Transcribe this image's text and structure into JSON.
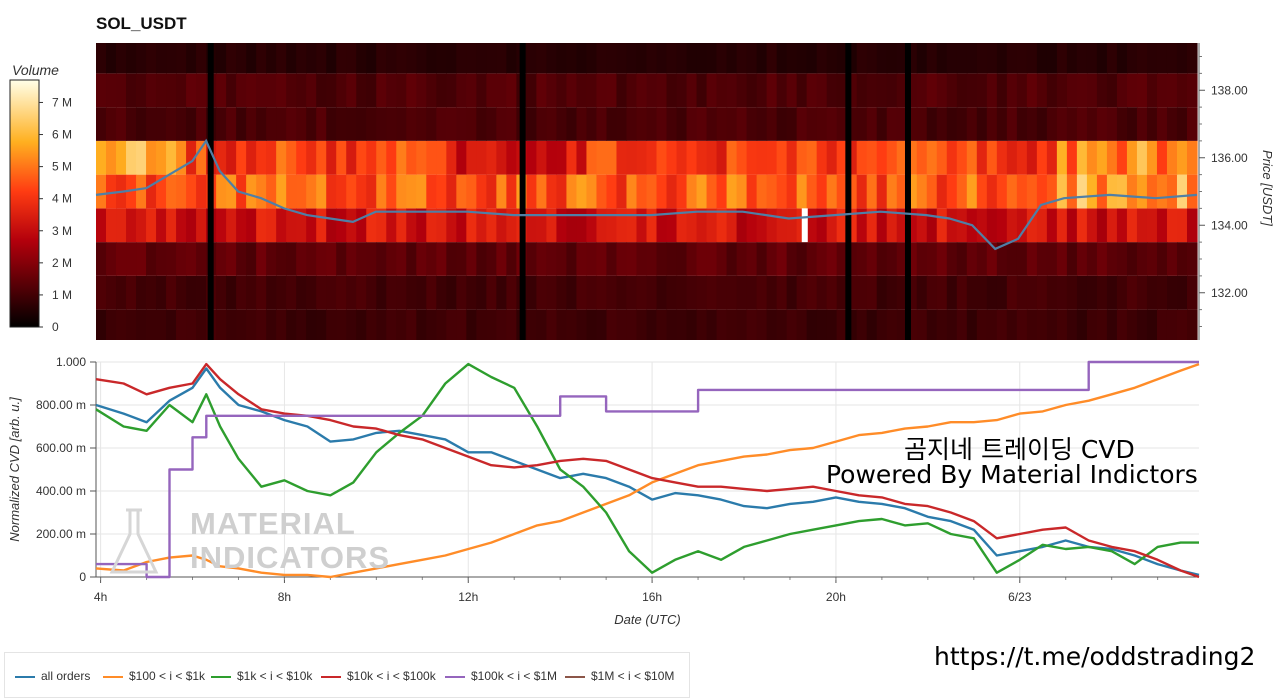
{
  "title": "SOL_USDT",
  "colorbar": {
    "title": "Volume",
    "tick_labels": [
      "0",
      "1 M",
      "2 M",
      "3 M",
      "4 M",
      "5 M",
      "6 M",
      "7 M"
    ],
    "tick_values": [
      0,
      1,
      2,
      3,
      4,
      5,
      6,
      7
    ],
    "max": 7.7
  },
  "heatmap": {
    "price_axis_label": "Price [USDT]",
    "price_ticks": [
      "132.00",
      "134.00",
      "136.00",
      "138.00"
    ],
    "price_tick_values": [
      132,
      134,
      136,
      138
    ],
    "price_range": [
      130.6,
      139.4
    ],
    "price_line_color": "#4f7fa6"
  },
  "cvd": {
    "y_axis_label": "Normalized CVD [arb. u.]",
    "y_ticks": [
      "0",
      "200.00 m",
      "400.00 m",
      "600.00 m",
      "800.00 m",
      "1.000"
    ],
    "y_tick_values": [
      0,
      0.2,
      0.4,
      0.6,
      0.8,
      1.0
    ],
    "x_axis_label": "Date (UTC)",
    "x_ticks": [
      "4h",
      "8h",
      "12h",
      "16h",
      "20h",
      "6/23"
    ],
    "x_tick_hours": [
      4,
      8,
      12,
      16,
      20,
      24
    ],
    "x_range": [
      3.9,
      27.9
    ]
  },
  "legend": [
    {
      "label": "all orders",
      "color": "#2b7bab"
    },
    {
      "label": "$100 < i < $1k",
      "color": "#ff8c28"
    },
    {
      "label": "$1k < i < $10k",
      "color": "#2e9e2e"
    },
    {
      "label": "$10k < i < $100k",
      "color": "#c9282a"
    },
    {
      "label": "$100k < i < $1M",
      "color": "#9565bd"
    },
    {
      "label": "$1M < i < $10M",
      "color": "#8c5649"
    }
  ],
  "overlay": {
    "line1": "곰지네 트레이딩 CVD",
    "line2": "Powered By Material Indictors",
    "telegram": "https://t.me/oddstrading2"
  },
  "watermark": {
    "line1": "MATERIAL",
    "line2": "INDICATORS"
  },
  "chart_data": [
    {
      "type": "heatmap",
      "title": "SOL_USDT",
      "xlabel": "",
      "ylabel": "Price [USDT]",
      "ylim": [
        130.6,
        139.4
      ],
      "price_bands": [
        131.0,
        132.0,
        133.0,
        134.0,
        135.0,
        136.0,
        137.0,
        138.0,
        139.0
      ],
      "band_volume_profile_M": [
        0.9,
        1.0,
        1.4,
        3.2,
        4.6,
        4.2,
        1.1,
        1.2,
        0.6
      ],
      "price_line": {
        "hours": [
          3.9,
          4.5,
          5.0,
          5.5,
          6.0,
          6.3,
          6.6,
          7.0,
          7.5,
          8.0,
          8.5,
          9.0,
          9.5,
          10.0,
          11.0,
          12.0,
          13.0,
          14.0,
          15.0,
          16.0,
          17.0,
          18.0,
          19.0,
          20.0,
          21.0,
          22.0,
          22.5,
          23.0,
          23.5,
          24.0,
          24.5,
          25.0,
          26.0,
          27.0,
          27.9
        ],
        "price": [
          134.9,
          135.0,
          135.1,
          135.5,
          135.9,
          136.5,
          135.6,
          135.0,
          134.8,
          134.5,
          134.3,
          134.2,
          134.1,
          134.4,
          134.4,
          134.4,
          134.3,
          134.3,
          134.3,
          134.3,
          134.4,
          134.4,
          134.2,
          134.3,
          134.4,
          134.3,
          134.2,
          134.0,
          133.3,
          133.6,
          134.6,
          134.8,
          134.9,
          134.8,
          134.9
        ]
      },
      "gaps_hours": [
        6.4,
        13.2,
        20.3,
        21.6
      ]
    },
    {
      "type": "line",
      "title": "",
      "xlabel": "Date (UTC)",
      "ylabel": "Normalized CVD [arb. u.]",
      "ylim": [
        0,
        1.0
      ],
      "x_hours": [
        3.9,
        4.5,
        5.0,
        5.5,
        6.0,
        6.3,
        6.6,
        7.0,
        7.5,
        8.0,
        8.5,
        9.0,
        9.5,
        10.0,
        10.5,
        11.0,
        11.5,
        12.0,
        12.5,
        13.0,
        13.5,
        14.0,
        14.5,
        15.0,
        15.5,
        16.0,
        16.5,
        17.0,
        17.5,
        18.0,
        18.5,
        19.0,
        19.5,
        20.0,
        20.5,
        21.0,
        21.5,
        22.0,
        22.5,
        23.0,
        23.5,
        24.0,
        24.5,
        25.0,
        25.5,
        26.0,
        26.5,
        27.0,
        27.5,
        27.9
      ],
      "series": [
        {
          "name": "all orders",
          "values": [
            0.8,
            0.76,
            0.72,
            0.82,
            0.88,
            0.97,
            0.88,
            0.8,
            0.77,
            0.73,
            0.7,
            0.63,
            0.64,
            0.67,
            0.68,
            0.66,
            0.64,
            0.58,
            0.58,
            0.54,
            0.5,
            0.46,
            0.48,
            0.46,
            0.42,
            0.36,
            0.39,
            0.38,
            0.36,
            0.33,
            0.32,
            0.34,
            0.35,
            0.37,
            0.35,
            0.34,
            0.32,
            0.28,
            0.26,
            0.22,
            0.1,
            0.12,
            0.14,
            0.17,
            0.14,
            0.13,
            0.1,
            0.06,
            0.03,
            0.01
          ]
        },
        {
          "name": "$100 < i < $1k",
          "values": [
            0.04,
            0.03,
            0.07,
            0.09,
            0.1,
            0.08,
            0.05,
            0.04,
            0.02,
            0.01,
            0.01,
            0.0,
            0.02,
            0.04,
            0.06,
            0.08,
            0.1,
            0.13,
            0.16,
            0.2,
            0.24,
            0.26,
            0.3,
            0.34,
            0.38,
            0.44,
            0.48,
            0.52,
            0.54,
            0.56,
            0.57,
            0.59,
            0.6,
            0.63,
            0.66,
            0.67,
            0.69,
            0.7,
            0.72,
            0.72,
            0.73,
            0.76,
            0.77,
            0.8,
            0.82,
            0.85,
            0.88,
            0.92,
            0.96,
            0.99
          ]
        },
        {
          "name": "$1k < i < $10k",
          "values": [
            0.78,
            0.7,
            0.68,
            0.8,
            0.72,
            0.85,
            0.7,
            0.55,
            0.42,
            0.45,
            0.4,
            0.38,
            0.44,
            0.58,
            0.67,
            0.75,
            0.9,
            0.99,
            0.93,
            0.88,
            0.7,
            0.5,
            0.42,
            0.3,
            0.12,
            0.02,
            0.08,
            0.12,
            0.08,
            0.14,
            0.17,
            0.2,
            0.22,
            0.24,
            0.26,
            0.27,
            0.24,
            0.25,
            0.2,
            0.18,
            0.02,
            0.08,
            0.15,
            0.13,
            0.14,
            0.12,
            0.06,
            0.14,
            0.16,
            0.16
          ]
        },
        {
          "name": "$10k < i < $100k",
          "values": [
            0.92,
            0.9,
            0.85,
            0.88,
            0.9,
            0.99,
            0.92,
            0.85,
            0.78,
            0.76,
            0.75,
            0.73,
            0.7,
            0.69,
            0.66,
            0.64,
            0.6,
            0.56,
            0.52,
            0.51,
            0.52,
            0.54,
            0.55,
            0.54,
            0.5,
            0.46,
            0.44,
            0.42,
            0.42,
            0.41,
            0.4,
            0.41,
            0.42,
            0.4,
            0.38,
            0.37,
            0.34,
            0.33,
            0.3,
            0.26,
            0.18,
            0.2,
            0.22,
            0.23,
            0.17,
            0.14,
            0.12,
            0.08,
            0.03,
            0.0
          ]
        },
        {
          "name": "$100k < i < $1M",
          "values": [
            0.06,
            0.06,
            0.0,
            0.5,
            0.65,
            0.75,
            0.75,
            0.75,
            0.75,
            0.75,
            0.75,
            0.75,
            0.75,
            0.75,
            0.75,
            0.75,
            0.75,
            0.75,
            0.75,
            0.75,
            0.75,
            0.84,
            0.84,
            0.77,
            0.77,
            0.77,
            0.77,
            0.87,
            0.87,
            0.87,
            0.87,
            0.87,
            0.87,
            0.87,
            0.87,
            0.87,
            0.87,
            0.87,
            0.87,
            0.87,
            0.87,
            0.87,
            0.87,
            0.87,
            1.0,
            1.0,
            1.0,
            1.0,
            1.0,
            1.0
          ]
        },
        {
          "name": "$1M < i < $10M",
          "values": [
            0.0
          ]
        }
      ]
    }
  ]
}
